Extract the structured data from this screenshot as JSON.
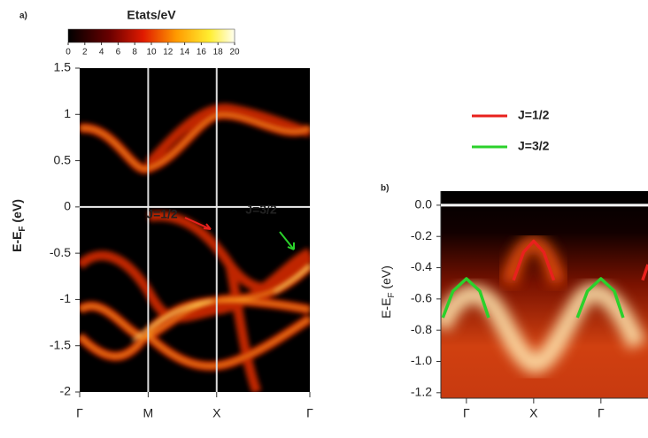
{
  "chart_data": [
    {
      "type": "heatmap",
      "panel_label": "a)",
      "colorbar": {
        "title": "Etats/eV",
        "lim": [
          0,
          20
        ],
        "ticks": [
          0,
          2,
          4,
          6,
          8,
          10,
          12,
          14,
          16,
          18,
          20
        ]
      },
      "ylabel": [
        "E-E",
        "F",
        " (eV)"
      ],
      "ylim": [
        -2,
        1.5
      ],
      "yticks": [
        -2,
        -1.5,
        -1,
        -0.5,
        0,
        0.5,
        1,
        1.5
      ],
      "xlim": [
        0,
        3.36
      ],
      "xticks": [
        {
          "value": 0,
          "label": "Γ"
        },
        {
          "value": 1,
          "label": "M"
        },
        {
          "value": 2,
          "label": "X"
        },
        {
          "value": 3.36,
          "label": "Γ"
        }
      ],
      "annotations": [
        {
          "text": "J=1/2",
          "color": "#e8211d"
        },
        {
          "text": "J=3/2",
          "color": "#2bd12b"
        }
      ]
    },
    {
      "type": "line",
      "panel_label": "b)",
      "ylabel": [
        "E-E",
        "F",
        " (eV)"
      ],
      "ylim": [
        -1.235,
        0.09
      ],
      "yticks": [
        {
          "value": 0,
          "label": "0.0"
        },
        -0.2,
        -0.4,
        -0.6,
        -0.8,
        {
          "value": -1,
          "label": "-1.0"
        },
        -1.2
      ],
      "xlim": [
        -0.38,
        2.7
      ],
      "xticks": [
        {
          "value": 0,
          "label": "Γ"
        },
        {
          "value": 1,
          "label": "X"
        },
        {
          "value": 2,
          "label": "Γ"
        }
      ],
      "series": [
        {
          "name": "J=1/2",
          "color": "#e8211d",
          "x": [
            0.7,
            0.85,
            1,
            1.15,
            1.3,
            null,
            2.62,
            2.7
          ],
          "values": [
            -0.48,
            -0.3,
            -0.23,
            -0.3,
            -0.48,
            null,
            -0.48,
            -0.38
          ]
        },
        {
          "name": "J=3/2",
          "color": "#2bd12b",
          "x": [
            -0.35,
            -0.2,
            0,
            0.2,
            0.33,
            null,
            1.65,
            1.8,
            2,
            2.2,
            2.33
          ],
          "values": [
            -0.72,
            -0.55,
            -0.47,
            -0.55,
            -0.72,
            null,
            -0.72,
            -0.55,
            -0.47,
            -0.55,
            -0.72
          ]
        }
      ]
    }
  ]
}
